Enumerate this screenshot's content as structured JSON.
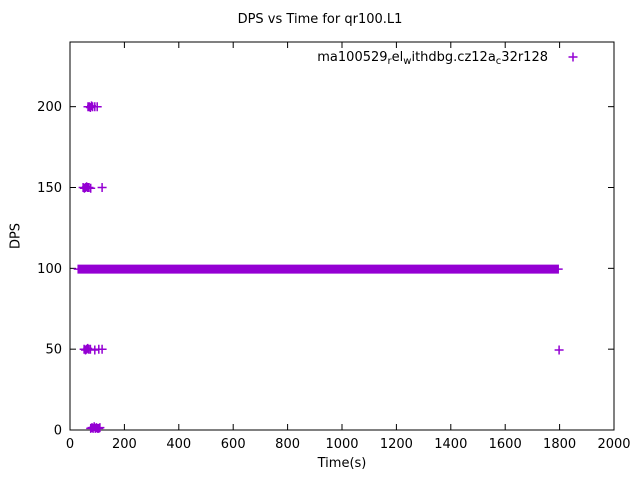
{
  "page": {
    "title": "DPS vs Time for qr100.L1"
  },
  "chart_data": {
    "type": "scatter",
    "title": "DPS vs Time for qr100.L1",
    "xlabel": "Time(s)",
    "ylabel": "DPS",
    "xlim": [
      0,
      2000
    ],
    "ylim": [
      0,
      240
    ],
    "xticks": [
      0,
      200,
      400,
      600,
      800,
      1000,
      1200,
      1400,
      1600,
      1800,
      2000
    ],
    "yticks": [
      0,
      50,
      100,
      150,
      200
    ],
    "grid": false,
    "legend_position": "top-right-inside",
    "series": [
      {
        "name": "ma100529_rel_withdbg.cz12a_c32r128",
        "name_segments": [
          {
            "text": "ma100529"
          },
          {
            "text": "r",
            "sub": true
          },
          {
            "text": "el"
          },
          {
            "text": "w",
            "sub": true
          },
          {
            "text": "ithdbg.cz12a"
          },
          {
            "text": "c",
            "sub": true
          },
          {
            "text": "32r128"
          }
        ],
        "marker": "+",
        "color": "#9400D3",
        "band": {
          "y": 99.5,
          "x_start": 30,
          "x_end": 1798,
          "step": 5
        },
        "points": [
          [
            66,
            200
          ],
          [
            71,
            200
          ],
          [
            75,
            199.5
          ],
          [
            79,
            200.5
          ],
          [
            83,
            200
          ],
          [
            91,
            200
          ],
          [
            100,
            200
          ],
          [
            48,
            150
          ],
          [
            53,
            149.5
          ],
          [
            57,
            150
          ],
          [
            61,
            150.5
          ],
          [
            65,
            150
          ],
          [
            70,
            150
          ],
          [
            76,
            149.5
          ],
          [
            118,
            150
          ],
          [
            52,
            50
          ],
          [
            57,
            49.5
          ],
          [
            61,
            50
          ],
          [
            65,
            50.5
          ],
          [
            69,
            50
          ],
          [
            75,
            50
          ],
          [
            91,
            49.5
          ],
          [
            106,
            50
          ],
          [
            118,
            50
          ],
          [
            1798,
            49.5
          ],
          [
            76,
            1
          ],
          [
            81,
            1.5
          ],
          [
            85,
            1
          ],
          [
            89,
            2
          ],
          [
            93,
            1
          ],
          [
            97,
            1.5
          ],
          [
            101,
            1
          ],
          [
            106,
            1
          ],
          [
            110,
            1.5
          ]
        ]
      }
    ]
  }
}
